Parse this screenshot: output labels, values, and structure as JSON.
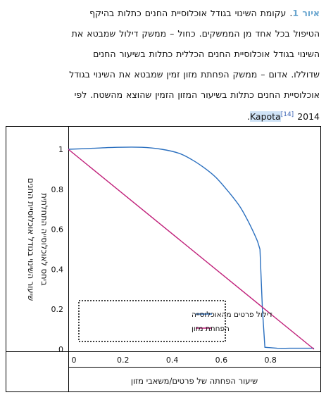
{
  "caption": {
    "fig_label": "איור 1",
    "line1": "עקומת השינוי בגודל אוכלוסיית החנים כתלות בהיקף",
    "line2": "הטיפול בכל אחד מן הממשקים. כחול – ממשק דילול שמבטא את",
    "line3": "השינוי בגודל אוכלוסיית החנים הכללית כתלות בשיעור החנים",
    "line4": "שדוללו. אדום – ממשק הפחתת מזון זמין שמבטא את השינוי בגודל",
    "line5": "אוכלוסיית החנים כתלות בשיעור המזון הזמין שהוצא מהשטח. לפי",
    "ref_name": "Kapota",
    "ref_year": "2014",
    "citation": "[14]",
    "end": "."
  },
  "colors": {
    "blue": "#2a6fbf",
    "magenta": "#c0207a",
    "axis": "#000000"
  },
  "chart_data": {
    "type": "line",
    "ylabel_line1": "שיעור השינוי בגודל אוכלוסיית החנים",
    "ylabel_line2": "ביחס לאוכלוסייה התחלתית",
    "xlabel": "שיעור הפחתה של פרטים/משאבי מזון",
    "xlim": [
      0,
      1
    ],
    "ylim": [
      0,
      1
    ],
    "x_ticks": [
      "0",
      "0.2",
      "0.4",
      "0.6",
      "0.8"
    ],
    "y_ticks": [
      "0",
      "0.2",
      "0.4",
      "0.6",
      "0.8",
      "1"
    ],
    "legend_position": "bottom-left",
    "series": [
      {
        "name": "דילול פרטים מהאוכלוסייה",
        "color": "#2a6fbf",
        "x": [
          0,
          0.1,
          0.2,
          0.3,
          0.38,
          0.45,
          0.5,
          0.55,
          0.6,
          0.65,
          0.7,
          0.74,
          0.77,
          0.78,
          0.79,
          0.8,
          0.85,
          0.9,
          0.95,
          1.0
        ],
        "y": [
          1.0,
          1.005,
          1.01,
          1.01,
          1.0,
          0.98,
          0.95,
          0.91,
          0.86,
          0.79,
          0.71,
          0.62,
          0.54,
          0.5,
          0.2,
          0.01,
          0.005,
          0.005,
          0.005,
          0.005
        ]
      },
      {
        "name": "הפחתת מזון",
        "color": "#c0207a",
        "x": [
          0,
          1.0
        ],
        "y": [
          1.0,
          0.0
        ]
      }
    ]
  }
}
